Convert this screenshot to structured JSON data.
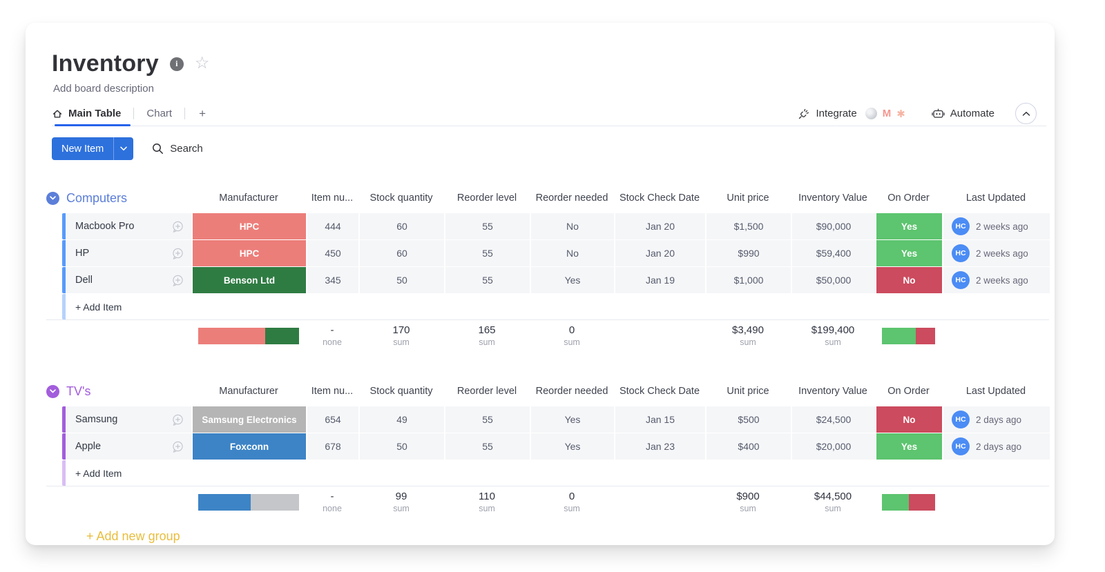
{
  "board": {
    "title": "Inventory",
    "description": "Add board description"
  },
  "tabs": {
    "main": "Main Table",
    "chart": "Chart",
    "add": "+"
  },
  "actions": {
    "integrate": "Integrate",
    "automate": "Automate"
  },
  "toolbar": {
    "new_item": "New Item",
    "search": "Search"
  },
  "columns": {
    "manufacturer": "Manufacturer",
    "item_number": "Item nu...",
    "stock_quantity": "Stock quantity",
    "reorder_level": "Reorder level",
    "reorder_needed": "Reorder needed",
    "stock_check_date": "Stock Check Date",
    "unit_price": "Unit price",
    "inventory_value": "Inventory Value",
    "on_order": "On Order",
    "last_updated": "Last Updated"
  },
  "labels": {
    "sum": "sum",
    "none": "none",
    "add_new_group": "+ Add new group"
  },
  "colors": {
    "add_new_group": "#e9bd3d",
    "tab_accent": "#2563eb",
    "primary_button": "#2d71dd",
    "avatar": "#4b8cf5"
  },
  "groups": [
    {
      "name": "Computers",
      "color": "#5b7ed9",
      "strip": "#579bfc",
      "strip_light": "#b5d2fb",
      "add_item": "+ Add Item",
      "rows": [
        {
          "name": "Macbook Pro",
          "manufacturer": "HPC",
          "manufacturer_color": "#ec7e7a",
          "item_number": "444",
          "stock_quantity": "60",
          "reorder_level": "55",
          "reorder_needed": "No",
          "stock_check_date": "Jan 20",
          "unit_price": "$1,500",
          "inventory_value": "$90,000",
          "on_order": "Yes",
          "on_order_color": "#5dc46f",
          "avatar": "HC",
          "last_updated": "2 weeks ago"
        },
        {
          "name": "HP",
          "manufacturer": "HPC",
          "manufacturer_color": "#ec7e7a",
          "item_number": "450",
          "stock_quantity": "60",
          "reorder_level": "55",
          "reorder_needed": "No",
          "stock_check_date": "Jan 20",
          "unit_price": "$990",
          "inventory_value": "$59,400",
          "on_order": "Yes",
          "on_order_color": "#5dc46f",
          "avatar": "HC",
          "last_updated": "2 weeks ago"
        },
        {
          "name": "Dell",
          "manufacturer": "Benson Ltd",
          "manufacturer_color": "#2f7c43",
          "item_number": "345",
          "stock_quantity": "50",
          "reorder_level": "55",
          "reorder_needed": "Yes",
          "stock_check_date": "Jan 19",
          "unit_price": "$1,000",
          "inventory_value": "$50,000",
          "on_order": "No",
          "on_order_color": "#cc4b5e",
          "avatar": "HC",
          "last_updated": "2 weeks ago"
        }
      ],
      "summary": {
        "item_number": "-",
        "stock_quantity": "170",
        "reorder_level": "165",
        "reorder_needed": "0",
        "unit_price": "$3,490",
        "inventory_value": "$199,400",
        "manufacturer_bar": [
          {
            "color": "#ec7e7a",
            "pct": 66.7
          },
          {
            "color": "#2f7c43",
            "pct": 33.3
          }
        ],
        "on_order_bar": [
          {
            "color": "#5dc46f",
            "pct": 64
          },
          {
            "color": "#cc4b5e",
            "pct": 36
          }
        ]
      }
    },
    {
      "name": "TV's",
      "color": "#a25ddc",
      "strip": "#a25ddc",
      "strip_light": "#d9bdf4",
      "add_item": "+ Add Item",
      "rows": [
        {
          "name": "Samsung",
          "manufacturer": "Samsung Electronics",
          "manufacturer_color": "#b5b5b5",
          "item_number": "654",
          "stock_quantity": "49",
          "reorder_level": "55",
          "reorder_needed": "Yes",
          "stock_check_date": "Jan 15",
          "unit_price": "$500",
          "inventory_value": "$24,500",
          "on_order": "No",
          "on_order_color": "#cc4b5e",
          "avatar": "HC",
          "last_updated": "2 days ago"
        },
        {
          "name": "Apple",
          "manufacturer": "Foxconn",
          "manufacturer_color": "#3d84c6",
          "item_number": "678",
          "stock_quantity": "50",
          "reorder_level": "55",
          "reorder_needed": "Yes",
          "stock_check_date": "Jan 23",
          "unit_price": "$400",
          "inventory_value": "$20,000",
          "on_order": "Yes",
          "on_order_color": "#5dc46f",
          "avatar": "HC",
          "last_updated": "2 days ago"
        }
      ],
      "summary": {
        "item_number": "-",
        "stock_quantity": "99",
        "reorder_level": "110",
        "reorder_needed": "0",
        "unit_price": "$900",
        "inventory_value": "$44,500",
        "manufacturer_bar": [
          {
            "color": "#3d84c6",
            "pct": 52
          },
          {
            "color": "#c4c6c9",
            "pct": 48
          }
        ],
        "on_order_bar": [
          {
            "color": "#5dc46f",
            "pct": 50
          },
          {
            "color": "#cc4b5e",
            "pct": 50
          }
        ]
      }
    }
  ]
}
